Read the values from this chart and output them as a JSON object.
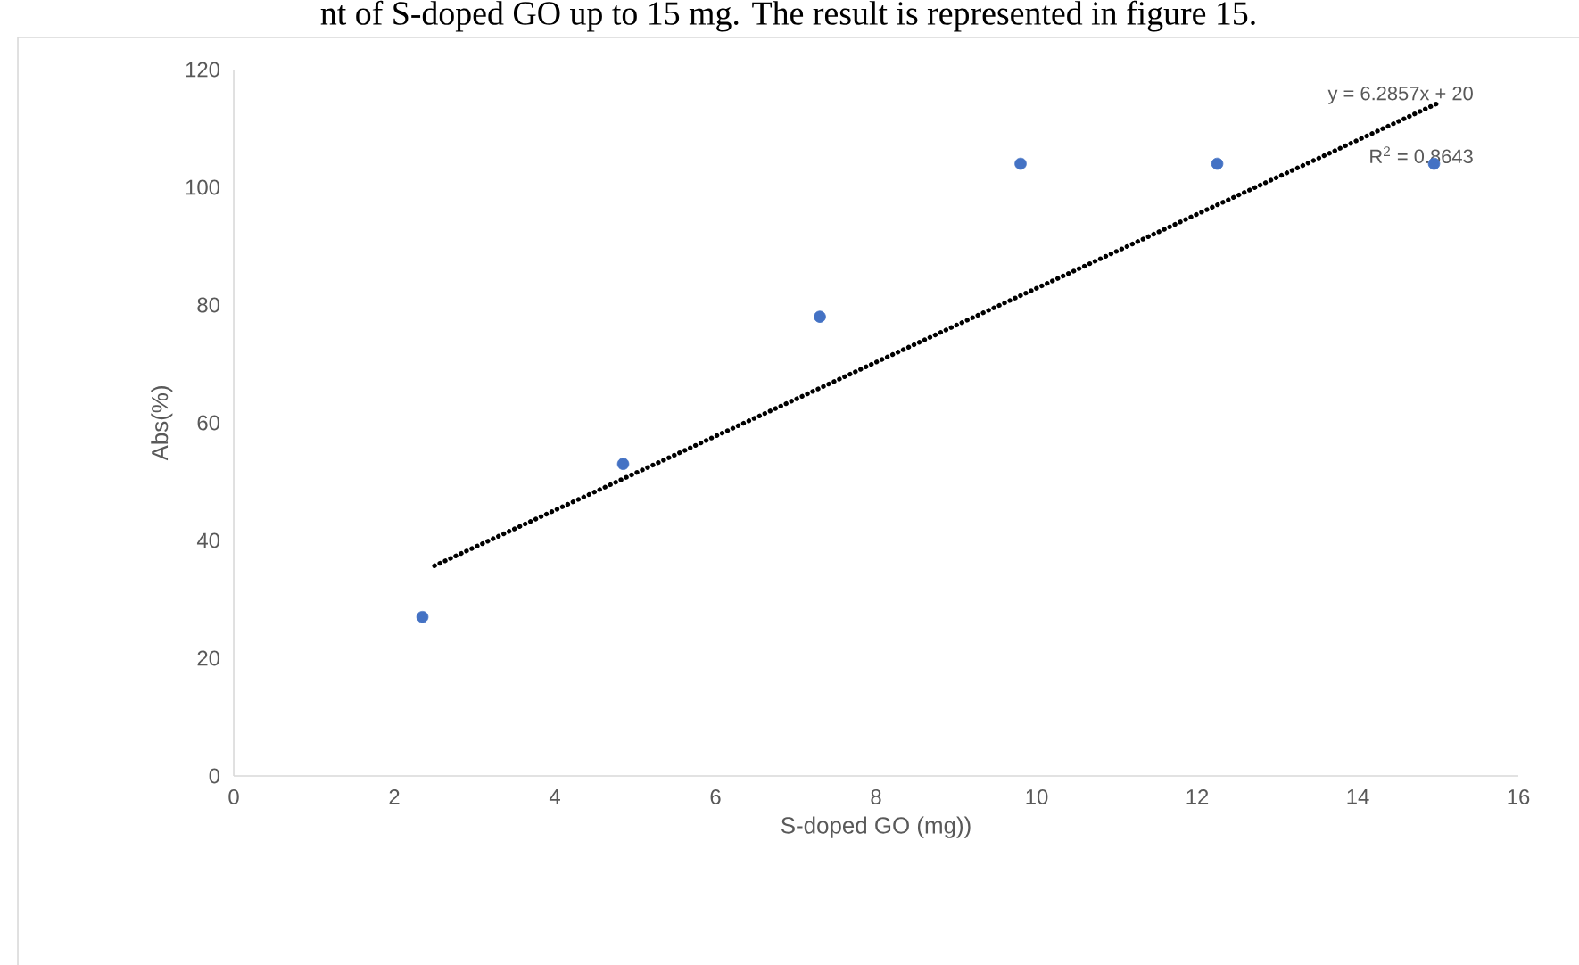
{
  "chart_data": {
    "type": "scatter",
    "xlabel": "S-doped GO (mg))",
    "ylabel": "Abs(%)",
    "annotations": [
      "nt of S-doped GO up to 15 mg. The result is represented in figure 15.",
      "y = 6.2857x + 20",
      "R$^{2}$ = 0.8643"
    ],
    "xlim": [
      0,
      16
    ],
    "ylim": [
      0,
      120
    ],
    "xticks": [
      0,
      2,
      4,
      6,
      8,
      10,
      12,
      14,
      16
    ],
    "yticks": [
      0,
      20,
      40,
      60,
      80,
      100,
      120
    ],
    "series": [
      {
        "color": "#4472c4",
        "x": [
          2.35,
          4.85,
          7.3,
          9.8,
          12.25,
          14.95
        ],
        "values": [
          27,
          53,
          78,
          104,
          104,
          104
        ],
        "marker": "circle"
      },
      {
        "type": "line",
        "color": "#000000",
        "x": [
          2.5,
          15
        ],
        "values": [
          35.7,
          114.3
        ],
        "line_style": "dotted",
        "marker": "none"
      }
    ]
  }
}
